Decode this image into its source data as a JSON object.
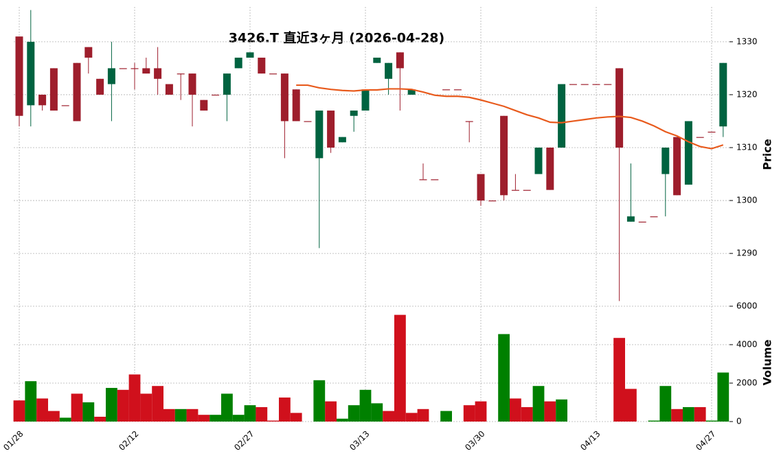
{
  "chart_data": [
    {
      "type": "candlestick",
      "title": "3426.T  直近3ヶ月 (2026-04-28)",
      "ylabel": "Price",
      "up_color": "#006340",
      "down_color": "#9e1e2c",
      "open": [
        1331,
        1318,
        1320,
        1325,
        1318,
        1326,
        1329,
        1323,
        1322,
        1325,
        1325,
        1325,
        1325,
        1322,
        1324,
        1324,
        1319,
        1320,
        1320,
        1325,
        1327,
        1327,
        1324,
        1324,
        1321,
        1315,
        1308,
        1317,
        1311,
        1316,
        1317,
        1326,
        1323,
        1328,
        1320,
        1304,
        1304,
        1321,
        1321,
        1315,
        1305,
        1300,
        1316,
        1302,
        1302,
        1305,
        1310,
        1310,
        1322,
        1322,
        1322,
        1322,
        1325,
        1296,
        1296,
        1297,
        1305,
        1312,
        1303,
        1312,
        1313,
        1314
      ],
      "high": [
        1331,
        1336,
        1320,
        1325,
        1318,
        1326,
        1329,
        1323,
        1330,
        1325,
        1326,
        1327,
        1329,
        1322,
        1324,
        1324,
        1319,
        1320,
        1324,
        1327,
        1328,
        1327,
        1324,
        1324,
        1321,
        1315,
        1317,
        1317,
        1312,
        1317,
        1321,
        1327,
        1326,
        1328,
        1321,
        1307,
        1304,
        1321,
        1321,
        1315,
        1305,
        1300,
        1316,
        1305,
        1302,
        1310,
        1310,
        1322,
        1322,
        1322,
        1322,
        1322,
        1325,
        1307,
        1296,
        1297,
        1310,
        1312,
        1315,
        1312,
        1313,
        1326
      ],
      "low": [
        1314,
        1314,
        1317,
        1317,
        1318,
        1315,
        1324,
        1320,
        1315,
        1325,
        1321,
        1324,
        1320,
        1320,
        1319,
        1314,
        1317,
        1320,
        1315,
        1325,
        1327,
        1324,
        1324,
        1308,
        1315,
        1315,
        1291,
        1309,
        1311,
        1313,
        1317,
        1326,
        1320,
        1317,
        1320,
        1304,
        1304,
        1321,
        1321,
        1311,
        1299,
        1300,
        1300,
        1302,
        1302,
        1305,
        1302,
        1310,
        1322,
        1322,
        1322,
        1322,
        1281,
        1296,
        1296,
        1297,
        1297,
        1301,
        1303,
        1312,
        1313,
        1312
      ],
      "close": [
        1316,
        1330,
        1318,
        1317,
        1318,
        1315,
        1327,
        1320,
        1325,
        1325,
        1325,
        1324,
        1323,
        1320,
        1324,
        1320,
        1317,
        1320,
        1324,
        1327,
        1328,
        1324,
        1324,
        1315,
        1315,
        1315,
        1317,
        1310,
        1312,
        1317,
        1321,
        1327,
        1326,
        1325,
        1321,
        1304,
        1304,
        1321,
        1321,
        1315,
        1300,
        1300,
        1301,
        1302,
        1302,
        1310,
        1302,
        1322,
        1322,
        1322,
        1322,
        1322,
        1310,
        1297,
        1296,
        1297,
        1310,
        1301,
        1315,
        1312,
        1313,
        1326
      ],
      "line": {
        "color": "#e85a1c",
        "values": [
          null,
          null,
          null,
          null,
          null,
          null,
          null,
          null,
          null,
          null,
          null,
          null,
          null,
          null,
          null,
          null,
          null,
          null,
          null,
          null,
          null,
          null,
          null,
          null,
          1321.8,
          1321.8,
          1321.3,
          1321.0,
          1320.8,
          1320.7,
          1320.9,
          1320.9,
          1321.1,
          1321.1,
          1321.0,
          1320.5,
          1319.9,
          1319.7,
          1319.7,
          1319.5,
          1319.0,
          1318.4,
          1317.8,
          1317.0,
          1316.2,
          1315.6,
          1314.8,
          1314.7,
          1315.0,
          1315.3,
          1315.6,
          1315.8,
          1315.9,
          1315.7,
          1315.0,
          1314.1,
          1313.0,
          1312.2,
          1311.1,
          1310.2,
          1309.8,
          1310.5
        ]
      },
      "ylim": [
        1280.8,
        1336.6
      ],
      "yticks": [
        1290,
        1300,
        1310,
        1320,
        1330
      ],
      "grid": true
    },
    {
      "type": "bar",
      "ylabel": "Volume",
      "categories": [
        "01/28",
        null,
        null,
        null,
        null,
        null,
        null,
        null,
        null,
        null,
        "02/12",
        null,
        null,
        null,
        null,
        null,
        null,
        null,
        null,
        null,
        "02/27",
        null,
        null,
        null,
        null,
        null,
        null,
        null,
        null,
        null,
        "03/13",
        null,
        null,
        null,
        null,
        null,
        null,
        null,
        null,
        null,
        "03/30",
        null,
        null,
        null,
        null,
        null,
        null,
        null,
        null,
        null,
        "04/13",
        null,
        null,
        null,
        null,
        null,
        null,
        null,
        null,
        null,
        "04/27",
        null
      ],
      "values": [
        1100,
        2100,
        1200,
        550,
        200,
        1450,
        1000,
        250,
        1750,
        1650,
        2450,
        1450,
        1850,
        650,
        650,
        650,
        350,
        350,
        1450,
        350,
        850,
        750,
        50,
        1250,
        450,
        0,
        2150,
        1050,
        150,
        850,
        1650,
        950,
        550,
        5550,
        450,
        650,
        0,
        550,
        0,
        850,
        1050,
        0,
        4550,
        1200,
        750,
        1850,
        1050,
        1150,
        0,
        0,
        0,
        0,
        4350,
        1700,
        0,
        50,
        1850,
        650,
        750,
        750,
        50,
        2550
      ],
      "colors": [
        "#d0101c",
        "#008000",
        "#d0101c",
        "#d0101c",
        "#008000",
        "#d0101c",
        "#008000",
        "#d0101c",
        "#008000",
        "#d0101c",
        "#d0101c",
        "#d0101c",
        "#d0101c",
        "#d0101c",
        "#008000",
        "#d0101c",
        "#d0101c",
        "#008000",
        "#008000",
        "#008000",
        "#008000",
        "#d0101c",
        "#d0101c",
        "#d0101c",
        "#d0101c",
        null,
        "#008000",
        "#d0101c",
        "#008000",
        "#008000",
        "#008000",
        "#008000",
        "#d0101c",
        "#d0101c",
        "#d0101c",
        "#d0101c",
        null,
        "#008000",
        null,
        "#d0101c",
        "#d0101c",
        null,
        "#008000",
        "#d0101c",
        "#d0101c",
        "#008000",
        "#d0101c",
        "#008000",
        null,
        null,
        null,
        null,
        "#d0101c",
        "#d0101c",
        null,
        "#008000",
        "#008000",
        "#d0101c",
        "#008000",
        "#d0101c",
        "#008000",
        "#008000"
      ],
      "ylim": [
        0,
        6000
      ],
      "yticks": [
        0,
        2000,
        4000,
        6000
      ],
      "grid": true
    }
  ]
}
